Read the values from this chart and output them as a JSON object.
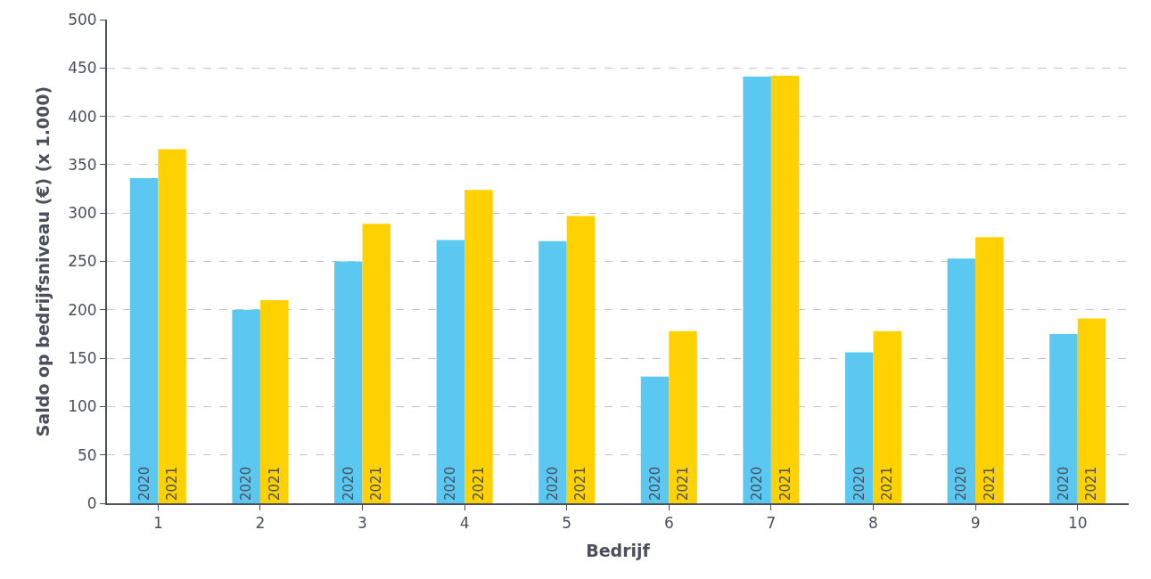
{
  "chart_data": {
    "type": "bar",
    "xlabel": "Bedrijf",
    "ylabel": "Saldo op bedrijfsniveau (€) (x 1.000)",
    "categories": [
      "1",
      "2",
      "3",
      "4",
      "5",
      "6",
      "7",
      "8",
      "9",
      "10"
    ],
    "series": [
      {
        "name": "2020",
        "color": "#5bc8f2",
        "values": [
          336,
          200,
          250,
          272,
          271,
          131,
          441,
          156,
          253,
          175
        ]
      },
      {
        "name": "2021",
        "color": "#ffd100",
        "values": [
          366,
          210,
          289,
          324,
          297,
          178,
          442,
          178,
          275,
          191
        ]
      }
    ],
    "ylim": [
      0,
      500
    ],
    "yticks": [
      0,
      50,
      100,
      150,
      200,
      250,
      300,
      350,
      400,
      450,
      500
    ],
    "grid": "y",
    "legend": false
  }
}
